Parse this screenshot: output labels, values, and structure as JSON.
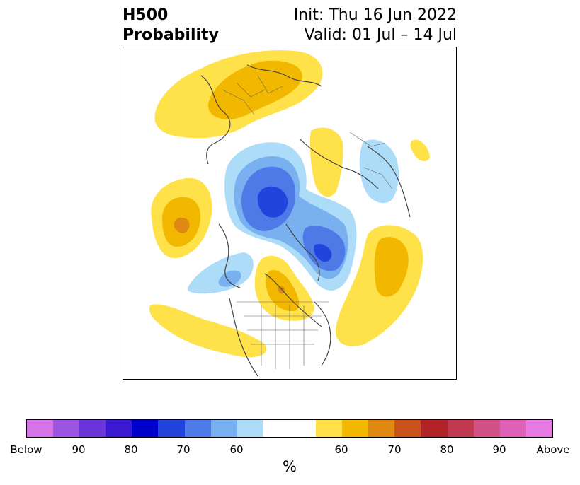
{
  "header": {
    "title_line1": "H500",
    "title_line2": "Probability",
    "init_line": "Init: Thu 16 Jun 2022",
    "valid_line": "Valid: 01 Jul – 14 Jul"
  },
  "colorbar": {
    "colors": [
      "#d674e9",
      "#9c55e0",
      "#6a36d9",
      "#3a19d1",
      "#0000cc",
      "#2244dc",
      "#4d7ae6",
      "#78b0f0",
      "#acdcf8",
      "#ffffff",
      "#ffe14a",
      "#f2b800",
      "#e08912",
      "#c9531b",
      "#b02226",
      "#c23a52",
      "#cf5185",
      "#dd61b6",
      "#e87be3"
    ],
    "labels": [
      "Below",
      "90",
      "80",
      "70",
      "60",
      "60",
      "70",
      "80",
      "90",
      "Above"
    ],
    "units": "%"
  },
  "map": {
    "fill_colors": {
      "light_yellow": "#ffe14a",
      "gold": "#f2b800",
      "orange": "#e08912",
      "light_blue": "#acdcf8",
      "mid_blue": "#78b0f0",
      "blue": "#4d7ae6",
      "dark_blue": "#2244dc",
      "coast": "#444444"
    }
  }
}
